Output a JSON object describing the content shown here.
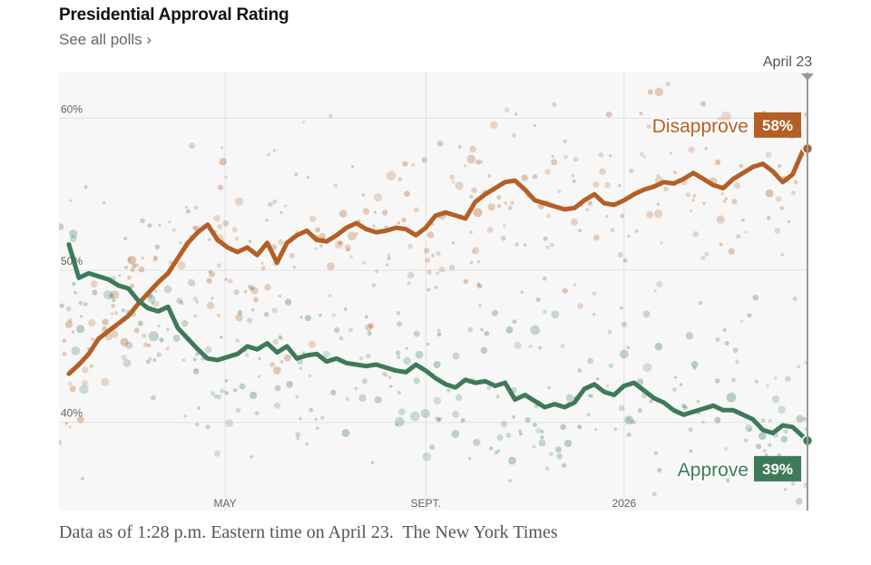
{
  "header": {
    "title": "Presidential Approval Rating",
    "polls_link": "See all polls ›"
  },
  "footer": {
    "note": "Data as of 1:28 p.m. Eastern time on April 23.  The New York Times"
  },
  "colors": {
    "disapprove": "#b35f26",
    "approve": "#3d7a5a",
    "plot_bg": "#f7f7f7",
    "grid": "#e2e2e2",
    "axis_text": "#666666"
  },
  "chart_data": {
    "type": "line",
    "x_unit": "months since Jan 20, 2025",
    "xlim": [
      0,
      15.1
    ],
    "ylim": [
      34.2,
      63
    ],
    "y_ticks": [
      {
        "value": 40,
        "label": "40%"
      },
      {
        "value": 50,
        "label": "50%"
      },
      {
        "value": 60,
        "label": "60%"
      }
    ],
    "x_ticks": [
      {
        "value": 3.35,
        "label": "MAY"
      },
      {
        "value": 7.4,
        "label": "SEPT."
      },
      {
        "value": 11.4,
        "label": "2026"
      }
    ],
    "current_marker": {
      "value": 15.1,
      "label": "April 23"
    },
    "series": [
      {
        "name": "Disapprove",
        "end_label": "58%",
        "x": [
          0.2,
          0.4,
          0.6,
          0.8,
          1.0,
          1.2,
          1.4,
          1.6,
          1.8,
          2.0,
          2.2,
          2.4,
          2.6,
          2.8,
          3.0,
          3.2,
          3.4,
          3.6,
          3.8,
          4.0,
          4.2,
          4.4,
          4.6,
          4.8,
          5.0,
          5.2,
          5.4,
          5.6,
          5.8,
          6.0,
          6.2,
          6.4,
          6.6,
          6.8,
          7.0,
          7.2,
          7.4,
          7.6,
          7.8,
          8.0,
          8.2,
          8.4,
          8.6,
          8.8,
          9.0,
          9.2,
          9.4,
          9.6,
          9.8,
          10.0,
          10.2,
          10.4,
          10.6,
          10.8,
          11.0,
          11.2,
          11.4,
          11.6,
          11.8,
          12.0,
          12.2,
          12.4,
          12.6,
          12.8,
          13.0,
          13.2,
          13.4,
          13.6,
          13.8,
          14.0,
          14.2,
          14.4,
          14.6,
          14.8,
          15.0,
          15.1
        ],
        "values": [
          43.2,
          43.8,
          44.5,
          45.5,
          46.0,
          46.5,
          47.0,
          47.8,
          48.5,
          49.2,
          49.8,
          50.8,
          51.8,
          52.5,
          53.0,
          52.0,
          51.5,
          51.2,
          51.5,
          51.0,
          51.8,
          50.5,
          51.8,
          52.3,
          52.6,
          52.0,
          51.9,
          52.3,
          52.8,
          53.1,
          52.7,
          52.5,
          52.6,
          52.8,
          52.7,
          52.3,
          52.8,
          53.6,
          53.8,
          53.6,
          53.4,
          54.5,
          55.0,
          55.4,
          55.8,
          55.9,
          55.3,
          54.6,
          54.4,
          54.2,
          54.0,
          54.1,
          54.6,
          55.0,
          54.4,
          54.3,
          54.6,
          55.0,
          55.3,
          55.5,
          55.8,
          55.7,
          56.0,
          56.4,
          56.0,
          55.6,
          55.4,
          56.0,
          56.4,
          56.8,
          57.0,
          56.5,
          55.8,
          56.3,
          57.8,
          58.0
        ]
      },
      {
        "name": "Approve",
        "end_label": "39%",
        "x": [
          0.2,
          0.4,
          0.6,
          0.8,
          1.0,
          1.2,
          1.4,
          1.6,
          1.8,
          2.0,
          2.2,
          2.4,
          2.6,
          2.8,
          3.0,
          3.2,
          3.4,
          3.6,
          3.8,
          4.0,
          4.2,
          4.4,
          4.6,
          4.8,
          5.0,
          5.2,
          5.4,
          5.6,
          5.8,
          6.0,
          6.2,
          6.4,
          6.6,
          6.8,
          7.0,
          7.2,
          7.4,
          7.6,
          7.8,
          8.0,
          8.2,
          8.4,
          8.6,
          8.8,
          9.0,
          9.2,
          9.4,
          9.6,
          9.8,
          10.0,
          10.2,
          10.4,
          10.6,
          10.8,
          11.0,
          11.2,
          11.4,
          11.6,
          11.8,
          12.0,
          12.2,
          12.4,
          12.6,
          12.8,
          13.0,
          13.2,
          13.4,
          13.6,
          13.8,
          14.0,
          14.2,
          14.4,
          14.6,
          14.8,
          15.0,
          15.1
        ],
        "values": [
          51.7,
          49.5,
          49.8,
          49.6,
          49.4,
          49.0,
          48.8,
          48.0,
          47.5,
          47.3,
          47.6,
          46.2,
          45.5,
          44.8,
          44.2,
          44.1,
          44.3,
          44.5,
          45.0,
          44.8,
          45.2,
          44.6,
          45.0,
          44.2,
          44.4,
          44.5,
          44.0,
          44.2,
          43.9,
          43.8,
          43.7,
          43.8,
          43.6,
          43.4,
          43.3,
          43.8,
          43.4,
          42.9,
          42.5,
          42.3,
          42.8,
          42.6,
          42.7,
          42.4,
          42.6,
          41.5,
          41.8,
          41.4,
          41.0,
          41.2,
          41.0,
          41.3,
          42.2,
          42.5,
          42.0,
          41.8,
          42.4,
          42.6,
          42.1,
          41.6,
          41.3,
          40.8,
          40.5,
          40.7,
          40.9,
          41.1,
          40.8,
          40.8,
          40.5,
          40.2,
          39.5,
          39.3,
          39.8,
          39.7,
          39.1,
          38.8
        ]
      }
    ]
  }
}
